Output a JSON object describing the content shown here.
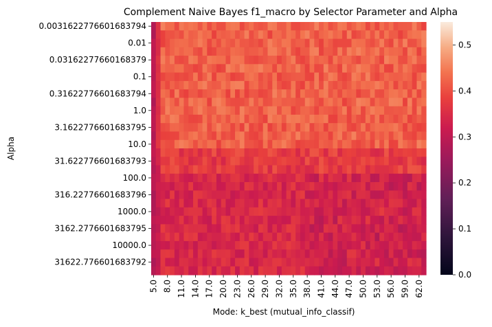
{
  "chart_data": {
    "type": "heatmap",
    "title": "Complement Naive Bayes f1_macro by Selector Parameter and Alpha",
    "xlabel": "Mode: k_best (mutual_info_classif)",
    "ylabel": "Alpha",
    "x_labels": [
      "5.0",
      "8.0",
      "11.0",
      "14.0",
      "17.0",
      "20.0",
      "23.0",
      "26.0",
      "29.0",
      "32.0",
      "35.0",
      "38.0",
      "41.0",
      "44.0",
      "47.0",
      "50.0",
      "53.0",
      "56.0",
      "59.0",
      "62.0"
    ],
    "x_tick_values": [
      5,
      8,
      11,
      14,
      17,
      20,
      23,
      26,
      29,
      32,
      35,
      38,
      41,
      44,
      47,
      50,
      53,
      56,
      59,
      62
    ],
    "x_range": [
      5,
      64
    ],
    "y_labels": [
      "0.0031622776601683794",
      "0.01",
      "0.03162277660168379",
      "0.1",
      "0.31622776601683794",
      "1.0",
      "3.1622776601683795",
      "10.0",
      "31.622776601683793",
      "100.0",
      "316.22776601683796",
      "1000.0",
      "3162.2776601683795",
      "10000.0",
      "31622.776601683792"
    ],
    "y_rows_per_label": 2,
    "colorbar": {
      "min": 0.0,
      "max": 0.55,
      "ticks": [
        "0.0",
        "0.1",
        "0.2",
        "0.3",
        "0.4",
        "0.5"
      ],
      "tick_values": [
        0.0,
        0.1,
        0.2,
        0.3,
        0.4,
        0.5
      ],
      "colormap": "rocket"
    },
    "approx_value_profile": {
      "alpha_low_rows_typical": 0.42,
      "alpha_high_rows_typical": 0.33,
      "first_column_typical": 0.29,
      "peak_value": 0.5
    },
    "colors": {
      "low": "#03051a",
      "mid": "#cb1b4f",
      "high": "#faebdd"
    }
  }
}
